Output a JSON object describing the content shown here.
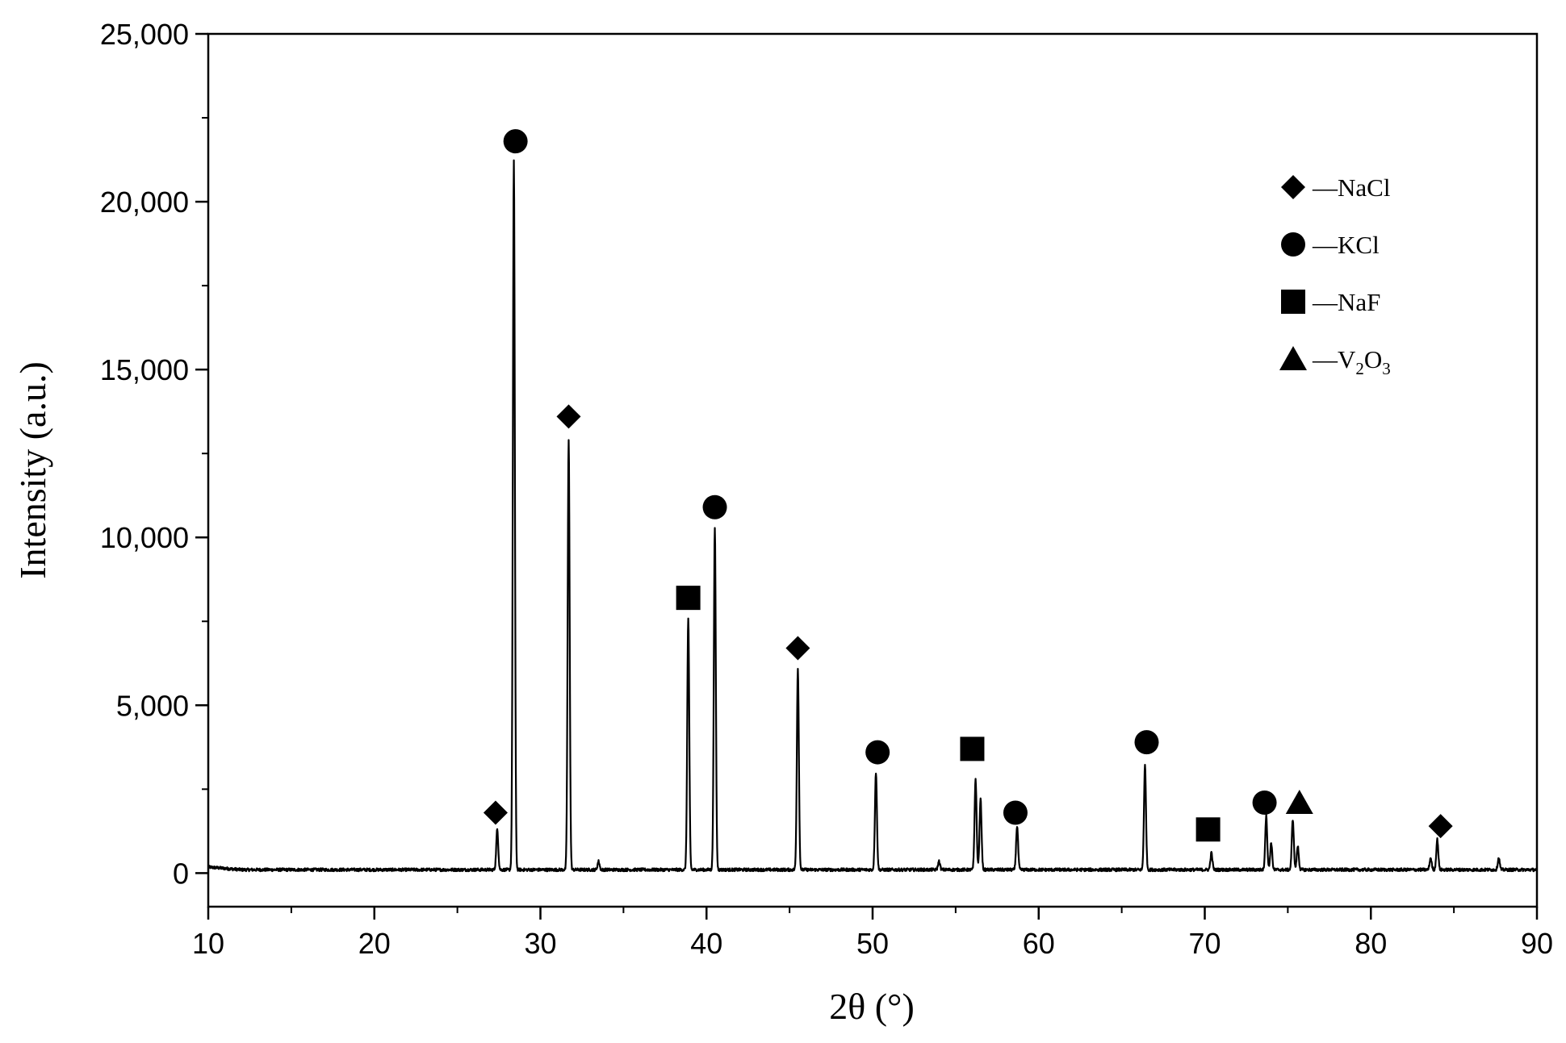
{
  "chart_data": {
    "type": "line",
    "xlabel": "2θ (°)",
    "ylabel": "Intensity (a.u.)",
    "xlim": [
      10,
      90
    ],
    "ylim": [
      -1000,
      25000
    ],
    "x_ticks": [
      10,
      20,
      30,
      40,
      50,
      60,
      70,
      80,
      90
    ],
    "x_tick_labels": [
      "10",
      "20",
      "30",
      "40",
      "50",
      "60",
      "70",
      "80",
      "90"
    ],
    "y_ticks": [
      0,
      5000,
      10000,
      15000,
      20000,
      25000
    ],
    "y_tick_labels": [
      "0",
      "5,000",
      "10,000",
      "15,000",
      "20,000",
      "25,000"
    ],
    "grid": false,
    "legend_position": "top-right",
    "baseline": 100,
    "peaks": [
      {
        "x": 27.4,
        "y": 1200
      },
      {
        "x": 28.4,
        "y": 21100
      },
      {
        "x": 31.7,
        "y": 12800
      },
      {
        "x": 33.5,
        "y": 250
      },
      {
        "x": 38.9,
        "y": 7500
      },
      {
        "x": 40.5,
        "y": 10200
      },
      {
        "x": 45.5,
        "y": 6000
      },
      {
        "x": 50.2,
        "y": 2900
      },
      {
        "x": 54.0,
        "y": 250
      },
      {
        "x": 56.2,
        "y": 2700
      },
      {
        "x": 56.5,
        "y": 2100
      },
      {
        "x": 58.7,
        "y": 1300
      },
      {
        "x": 66.4,
        "y": 3100
      },
      {
        "x": 70.4,
        "y": 500
      },
      {
        "x": 73.7,
        "y": 1600
      },
      {
        "x": 74.0,
        "y": 800
      },
      {
        "x": 75.3,
        "y": 1500
      },
      {
        "x": 75.6,
        "y": 700
      },
      {
        "x": 83.6,
        "y": 350
      },
      {
        "x": 84.0,
        "y": 900
      },
      {
        "x": 87.7,
        "y": 350
      }
    ],
    "markers": [
      {
        "phase": "NaCl",
        "x": 27.3,
        "y": 1800
      },
      {
        "phase": "KCl",
        "x": 28.5,
        "y": 21800
      },
      {
        "phase": "NaCl",
        "x": 31.7,
        "y": 13600
      },
      {
        "phase": "NaF",
        "x": 38.9,
        "y": 8200
      },
      {
        "phase": "KCl",
        "x": 40.5,
        "y": 10900
      },
      {
        "phase": "NaCl",
        "x": 45.5,
        "y": 6700
      },
      {
        "phase": "KCl",
        "x": 50.3,
        "y": 3600
      },
      {
        "phase": "NaF",
        "x": 56.0,
        "y": 3700
      },
      {
        "phase": "KCl",
        "x": 58.6,
        "y": 1800
      },
      {
        "phase": "KCl",
        "x": 66.5,
        "y": 3900
      },
      {
        "phase": "NaF",
        "x": 70.2,
        "y": 1300
      },
      {
        "phase": "KCl",
        "x": 73.6,
        "y": 2100
      },
      {
        "phase": "V2O3",
        "x": 75.7,
        "y": 2100
      },
      {
        "phase": "NaCl",
        "x": 84.2,
        "y": 1400
      }
    ],
    "legend": [
      {
        "phase": "NaCl",
        "shape": "diamond",
        "label": "—NaCl"
      },
      {
        "phase": "KCl",
        "shape": "circle",
        "label": "—KCl"
      },
      {
        "phase": "NaF",
        "shape": "square",
        "label": "—NaF"
      },
      {
        "phase": "V2O3",
        "shape": "triangle",
        "label_prefix": "—V",
        "sub1": "2",
        "mid": "O",
        "sub2": "3"
      }
    ],
    "colors": {
      "line": "#000000",
      "marker": "#000000",
      "axis": "#000000"
    }
  }
}
